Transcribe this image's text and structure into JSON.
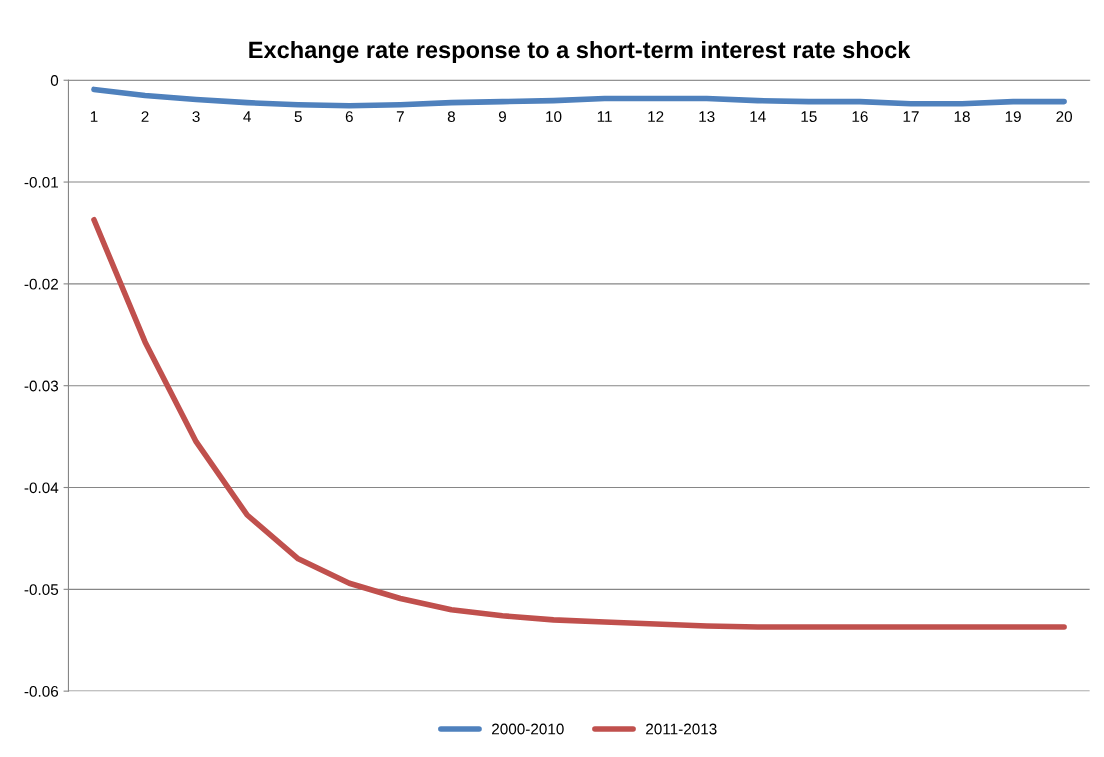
{
  "chart_data": {
    "type": "line",
    "title": "Exchange rate response to a short-term interest rate shock",
    "categories": [
      "1",
      "2",
      "3",
      "4",
      "5",
      "6",
      "7",
      "8",
      "9",
      "10",
      "11",
      "12",
      "13",
      "14",
      "15",
      "16",
      "17",
      "18",
      "19",
      "20"
    ],
    "series": [
      {
        "name": "2000-2010",
        "color": "#4f81bd",
        "values": [
          -0.0009,
          -0.0015,
          -0.0019,
          -0.0022,
          -0.0024,
          -0.0025,
          -0.0024,
          -0.0022,
          -0.0021,
          -0.002,
          -0.0018,
          -0.0018,
          -0.0018,
          -0.002,
          -0.0021,
          -0.0021,
          -0.0023,
          -0.0023,
          -0.0021,
          -0.0021
        ]
      },
      {
        "name": "2011-2013",
        "color": "#c0504d",
        "values": [
          -0.0137,
          -0.0257,
          -0.0355,
          -0.0427,
          -0.047,
          -0.0494,
          -0.0509,
          -0.052,
          -0.0526,
          -0.053,
          -0.0532,
          -0.0534,
          -0.0536,
          -0.0537,
          -0.0537,
          -0.0537,
          -0.0537,
          -0.0537,
          -0.0537,
          -0.0537
        ]
      }
    ],
    "ylim": [
      -0.06,
      0
    ],
    "yticks": [
      {
        "value": -0.06,
        "label": "-0.06"
      },
      {
        "value": -0.05,
        "label": "-0.05"
      },
      {
        "value": -0.04,
        "label": "-0.04"
      },
      {
        "value": -0.03,
        "label": "-0.03"
      },
      {
        "value": -0.02,
        "label": "-0.02"
      },
      {
        "value": -0.01,
        "label": "-0.01"
      },
      {
        "value": 0,
        "label": "0"
      }
    ],
    "grid": "y",
    "legend": "bottom",
    "marker": "none",
    "line_style": "solid"
  }
}
